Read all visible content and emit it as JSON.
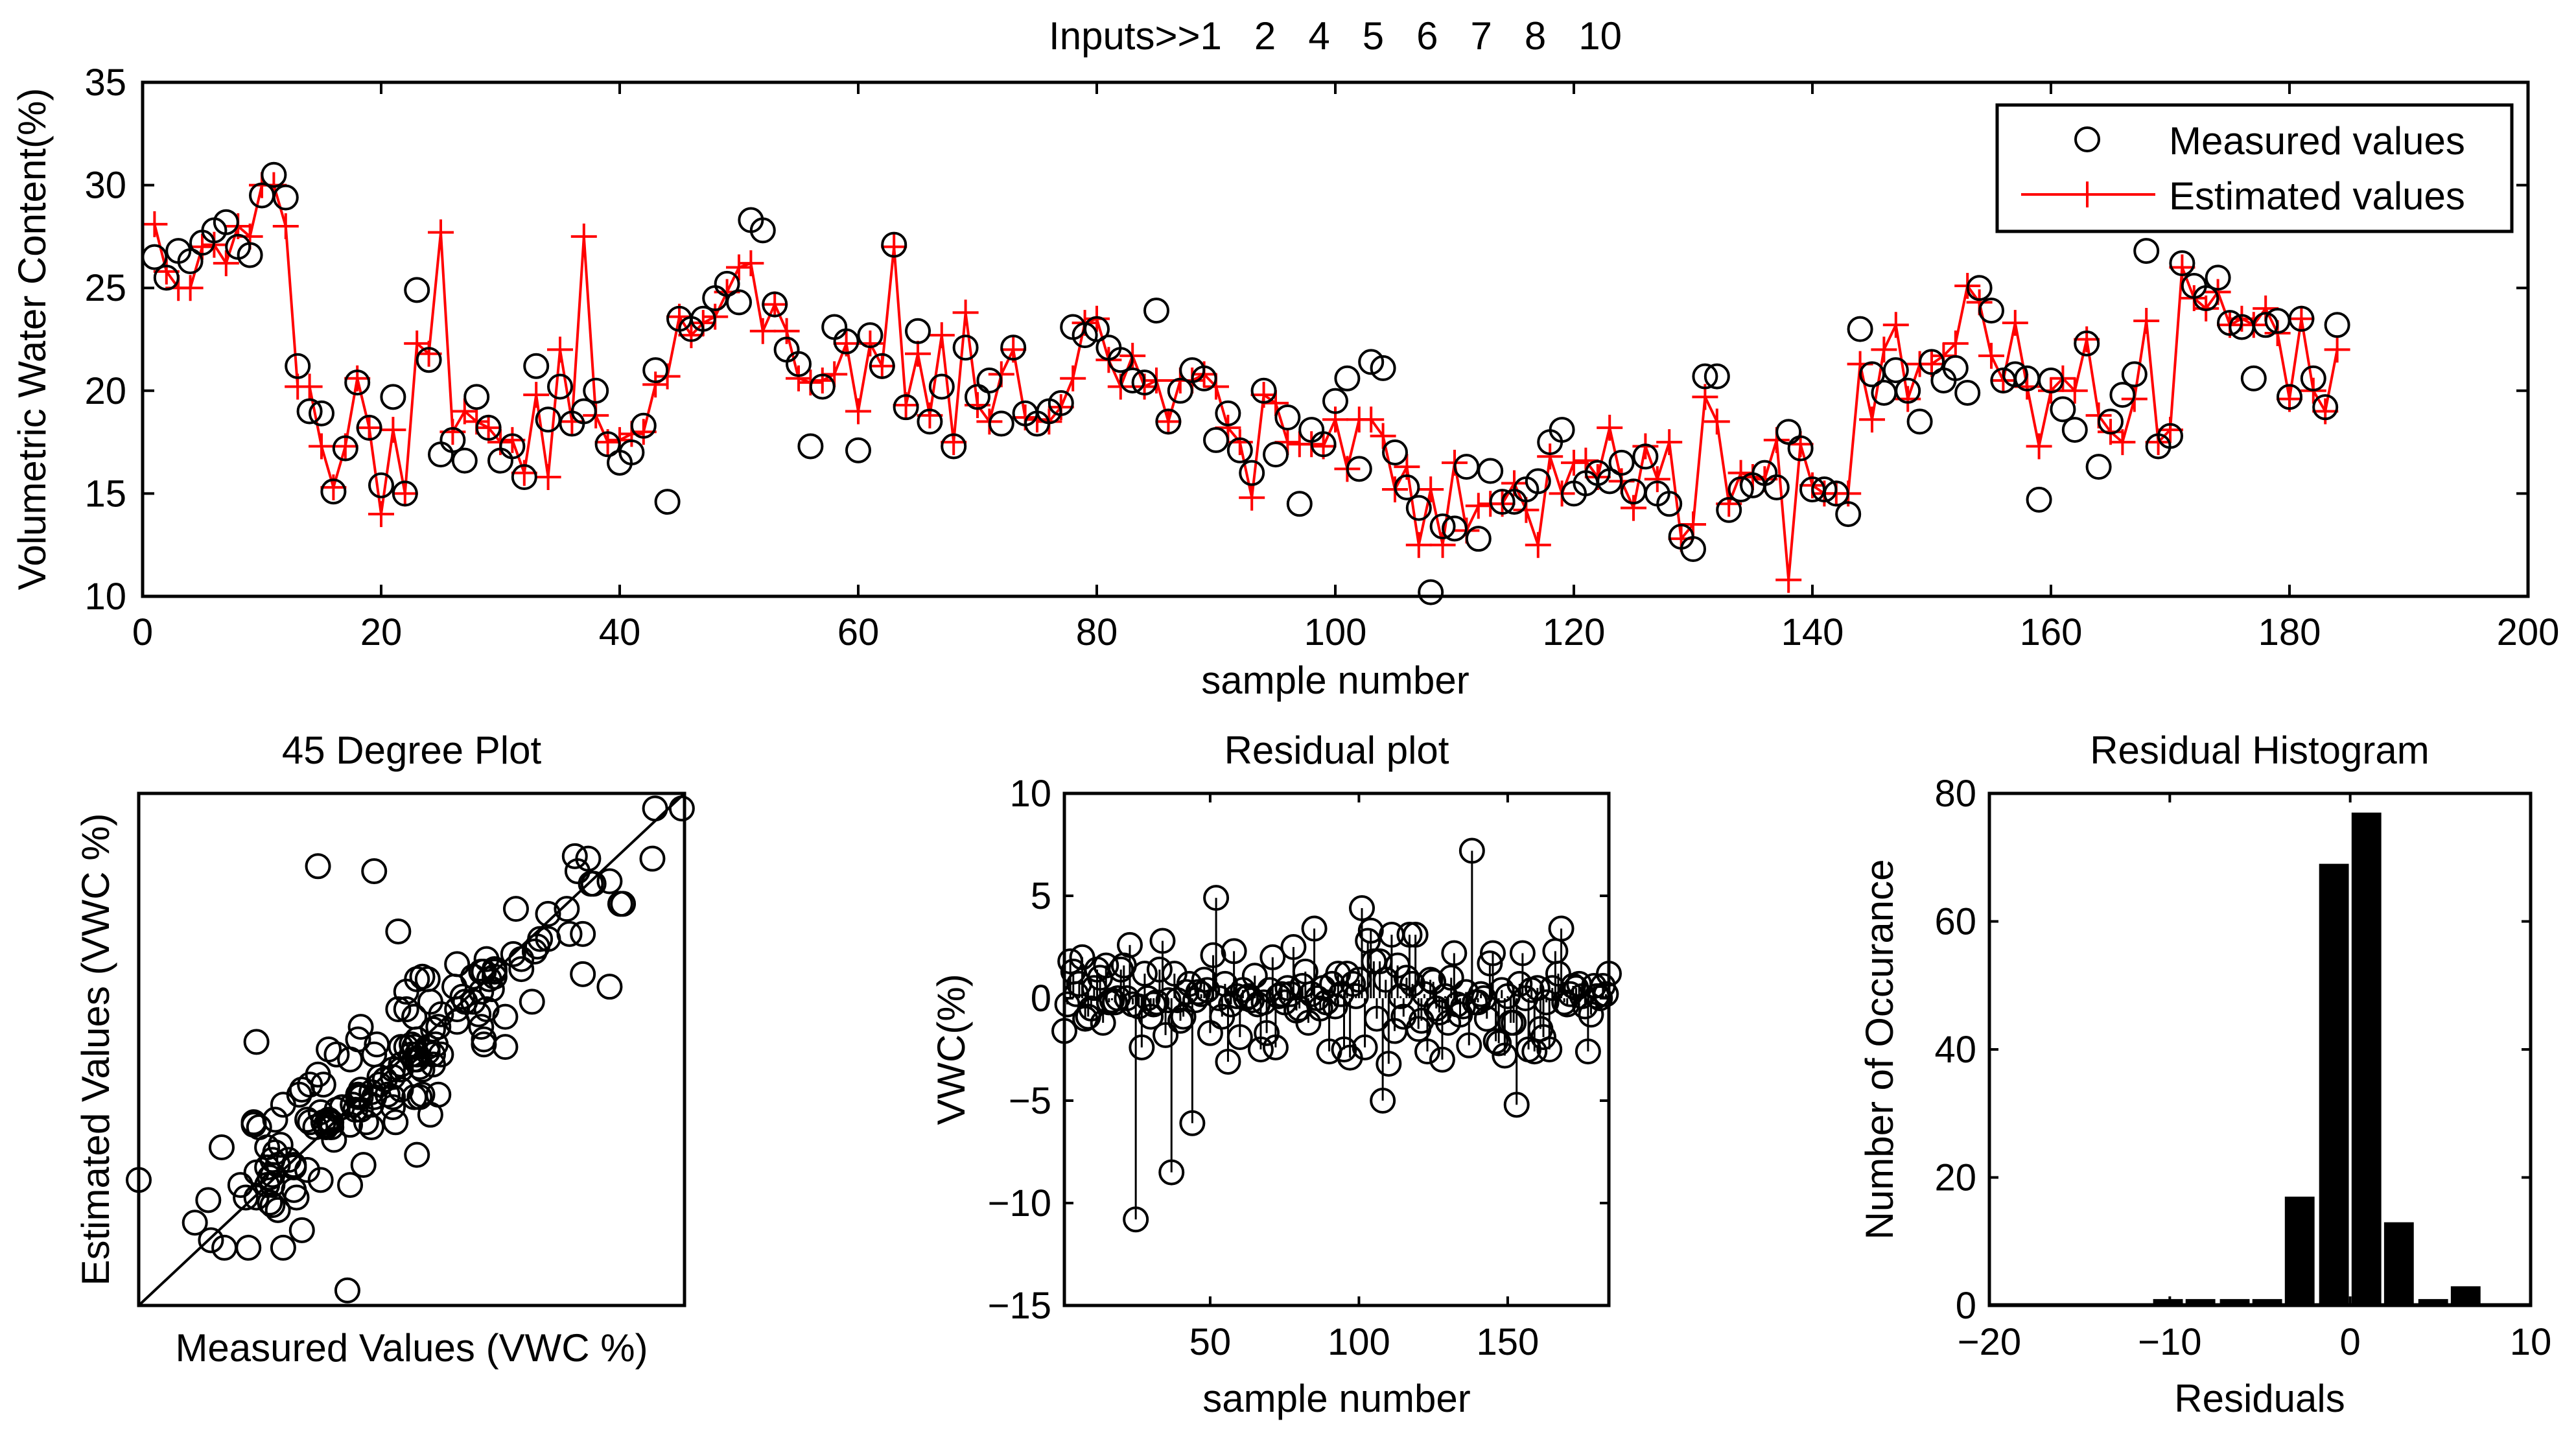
{
  "colors": {
    "measured": "#000000",
    "estimated": "#ff0000",
    "bars": "#000000"
  },
  "chart_data": [
    {
      "type": "line",
      "title": "Inputs>>1   2   4   5   6   7   8   10",
      "xlabel": "sample number",
      "ylabel": "Volumetric Water Content(%)",
      "xlim": [
        0,
        200
      ],
      "ylim": [
        10,
        35
      ],
      "xticks": [
        "0",
        "20",
        "40",
        "60",
        "80",
        "100",
        "120",
        "140",
        "160",
        "180",
        "200"
      ],
      "yticks": [
        "10",
        "15",
        "20",
        "25",
        "30",
        "35"
      ],
      "legend": {
        "position": "top-right",
        "entries": [
          "Measured values",
          "Estimated values"
        ]
      },
      "series": [
        {
          "name": "Measured values",
          "marker": "circle",
          "values": [
            26.5,
            25.5,
            26.8,
            26.3,
            27.2,
            27.8,
            28.2,
            27,
            26.6,
            29.5,
            30.5,
            29.4,
            21.2,
            19,
            18.9,
            15.1,
            17.2,
            20.4,
            18.2,
            15.4,
            19.7,
            15,
            24.9,
            21.5,
            16.9,
            17.6,
            16.6,
            19.7,
            18.2,
            16.6,
            17.3,
            15.8,
            21.2,
            18.6,
            20.2,
            18.4,
            19,
            20,
            17.4,
            16.5,
            17,
            18.3,
            21,
            14.6,
            23.5,
            23,
            23.5,
            24.5,
            25.2,
            24.3,
            28.3,
            27.8,
            24.2,
            22,
            21.3,
            17.3,
            20.2,
            23.1,
            22.4,
            17.1,
            22.7,
            21.2,
            27.1,
            19.2,
            22.9,
            18.5,
            20.2,
            17.3,
            22.1,
            19.7,
            20.5,
            18.4,
            22.1,
            18.9,
            18.4,
            19,
            19.4,
            23.1,
            22.7,
            23,
            22.1,
            21.5,
            20.5,
            20.4,
            23.9,
            18.5,
            20,
            21,
            20.6,
            17.6,
            18.9,
            17.1,
            16,
            20,
            16.9,
            18.7,
            14.5,
            18.1,
            17.4,
            19.5,
            20.6,
            16.2,
            21.4,
            21.1,
            17,
            15.3,
            14.3,
            10.2,
            13.4,
            13.3,
            16.3,
            12.8,
            16.1,
            14.6,
            14.6,
            15.2,
            15.6,
            17.5,
            18.1,
            15,
            15.5,
            16,
            15.6,
            16.5,
            15.1,
            16.8,
            15,
            14.5,
            12.9,
            12.3,
            20.7,
            20.7,
            14.2,
            15.2,
            15.4,
            16,
            15.3,
            18,
            17.2,
            15.2,
            15.2,
            15,
            14,
            23,
            20.8,
            19.9,
            21,
            20,
            18.5,
            21.4,
            20.5,
            21.1,
            19.9,
            25,
            23.9,
            20.5,
            20.8,
            20.6,
            14.7,
            20.5,
            19.1,
            18.1,
            22.3,
            16.3,
            18.5,
            19.8,
            20.8,
            26.8,
            17.3,
            17.8,
            26.2,
            25.1,
            24.5,
            25.5,
            23.3,
            23.1,
            20.6,
            23.2,
            23.4,
            19.7,
            23.5,
            20.6,
            19.2,
            23.2
          ]
        },
        {
          "name": "Estimated values",
          "marker": "plus",
          "values": [
            28.1,
            25.8,
            25,
            25,
            27,
            27.1,
            26.2,
            28,
            27.5,
            30,
            30,
            28,
            20.2,
            20.2,
            17.3,
            15.3,
            17.3,
            20.6,
            18.2,
            14,
            18.1,
            15,
            22.3,
            21.8,
            27.7,
            18,
            19,
            18.5,
            18.2,
            17.5,
            17.6,
            16,
            19.8,
            15.8,
            22,
            18.5,
            27.5,
            18.8,
            17.5,
            17.6,
            17.9,
            18,
            20.3,
            20.7,
            23.6,
            22.7,
            23.3,
            23.6,
            24.8,
            26,
            26.2,
            22.9,
            24.2,
            22.9,
            20.6,
            20.4,
            20.5,
            20.8,
            22.3,
            19,
            22.3,
            21.2,
            27,
            19.3,
            21.8,
            18.8,
            22.7,
            17.5,
            23.8,
            19.3,
            18.5,
            20.8,
            22,
            18.7,
            18.6,
            18.5,
            19.2,
            20.6,
            23.3,
            23.5,
            21.5,
            20.2,
            21.7,
            20.2,
            20.5,
            18.5,
            20.5,
            20.5,
            20.8,
            20.2,
            18.2,
            17.5,
            14.8,
            19.8,
            19.4,
            17.5,
            17.4,
            17.4,
            17.3,
            18.6,
            16.2,
            18.6,
            18.6,
            17.8,
            15.2,
            16.3,
            12.5,
            15.2,
            12.5,
            16.5,
            13.2,
            14.4,
            14.5,
            14.5,
            15.5,
            14.2,
            12.5,
            16.8,
            15,
            16.5,
            16.6,
            15.8,
            18.2,
            15.6,
            14.3,
            17.3,
            15.7,
            17.5,
            12.8,
            13.5,
            19.7,
            18.5,
            14.5,
            16,
            15.8,
            15.7,
            17.6,
            10.8,
            17.4,
            15.4,
            15,
            15,
            15,
            21.3,
            18.6,
            22,
            23.2,
            19.6,
            21.3,
            21.3,
            21.7,
            22.3,
            25.1,
            24.3,
            21.7,
            20.5,
            23.3,
            20.2,
            17.3,
            20,
            20.6,
            20,
            22.5,
            18.8,
            18,
            17.5,
            19.6,
            23.4,
            17.5,
            18.1,
            26,
            24.5,
            24,
            24.8,
            23.2,
            23.5,
            23.2,
            24,
            22.8,
            19.6,
            23.5,
            20,
            19,
            22
          ]
        }
      ]
    },
    {
      "type": "scatter",
      "title": "45 Degree Plot",
      "xlabel": "Measured Values (VWC %)",
      "ylabel": "Estimated Values (VWC %)",
      "xlim": [
        10.2,
        30.6
      ],
      "ylim": [
        10.2,
        30.6
      ],
      "x_source": "Measured values",
      "y_source": "Estimated values",
      "reference_line": "y = x"
    },
    {
      "type": "scatter",
      "title": "Residual plot",
      "xlabel": "sample number",
      "ylabel": "VWC(%)",
      "xlim": [
        1,
        184
      ],
      "ylim": [
        -15,
        10
      ],
      "xticks": [
        "50",
        "100",
        "150"
      ],
      "yticks": [
        "-15",
        "-10",
        "-5",
        "0",
        "5",
        "10"
      ],
      "values_definition": "Measured values - Estimated values",
      "style": "stem"
    },
    {
      "type": "bar",
      "title": "Residual Histogram",
      "xlabel": "Residuals",
      "ylabel": "Number of Occurance",
      "xlim": [
        -20,
        10
      ],
      "ylim": [
        0,
        80
      ],
      "xticks": [
        "-20",
        "-10",
        "0",
        "10"
      ],
      "yticks": [
        "0",
        "20",
        "40",
        "60",
        "80"
      ],
      "bin_centers": [
        -10.1,
        -8.3,
        -6.4,
        -4.6,
        -2.8,
        -0.9,
        0.9,
        2.7,
        4.6,
        6.4
      ],
      "bin_width": 1.83,
      "values": [
        1,
        1,
        1,
        1,
        17,
        69,
        77,
        13,
        1,
        3
      ]
    }
  ]
}
